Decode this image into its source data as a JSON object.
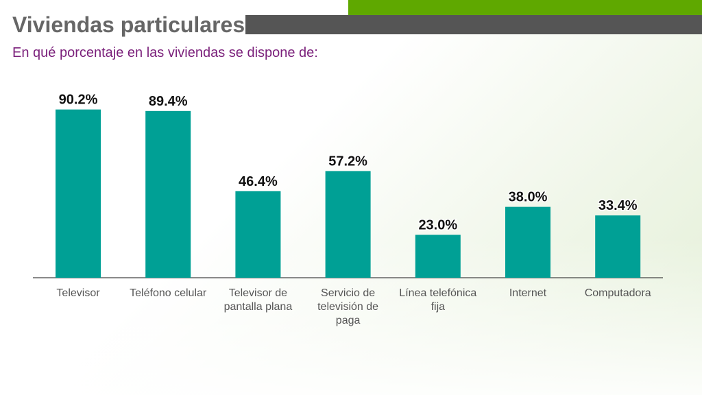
{
  "header": {
    "title": "Viviendas particulares",
    "subtitle": "En qué porcentaje en las viviendas se dispone de:"
  },
  "colors": {
    "accent_green": "#5fa800",
    "header_gray": "#555555",
    "title_text": "#666666",
    "subtitle_text": "#7a1f7a",
    "bar": "#00a095",
    "axis": "#444444",
    "label_text": "#555555",
    "value_text": "#111111"
  },
  "chart_data": {
    "type": "bar",
    "categories": [
      "Televisor",
      "Teléfono celular",
      "Televisor de pantalla plana",
      "Servicio de televisión de paga",
      "Línea telefónica fija",
      "Internet",
      "Computadora"
    ],
    "category_lines": [
      [
        "Televisor"
      ],
      [
        "Teléfono celular"
      ],
      [
        "Televisor de",
        "pantalla plana"
      ],
      [
        "Servicio de",
        "televisión de",
        "paga"
      ],
      [
        "Línea telefónica",
        "fija"
      ],
      [
        "Internet"
      ],
      [
        "Computadora"
      ]
    ],
    "values": [
      90.2,
      89.4,
      46.4,
      57.2,
      23.0,
      38.0,
      33.4
    ],
    "value_labels": [
      "90.2%",
      "89.4%",
      "46.4%",
      "57.2%",
      "23.0%",
      "38.0%",
      "33.4%"
    ],
    "ylim": [
      0,
      100
    ],
    "grid": false,
    "legend": "none"
  }
}
